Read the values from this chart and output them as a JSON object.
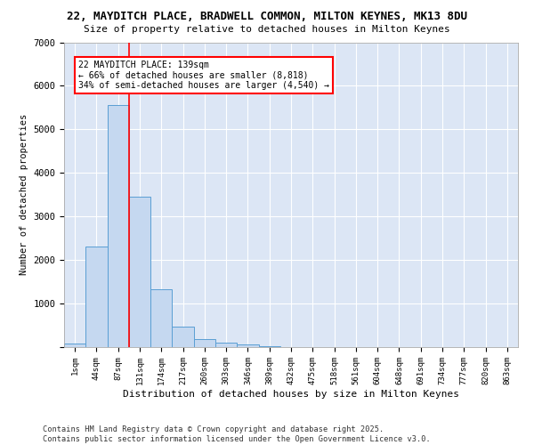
{
  "title_line1": "22, MAYDITCH PLACE, BRADWELL COMMON, MILTON KEYNES, MK13 8DU",
  "title_line2": "Size of property relative to detached houses in Milton Keynes",
  "xlabel": "Distribution of detached houses by size in Milton Keynes",
  "ylabel": "Number of detached properties",
  "categories": [
    "1sqm",
    "44sqm",
    "87sqm",
    "131sqm",
    "174sqm",
    "217sqm",
    "260sqm",
    "303sqm",
    "346sqm",
    "389sqm",
    "432sqm",
    "475sqm",
    "518sqm",
    "561sqm",
    "604sqm",
    "648sqm",
    "691sqm",
    "734sqm",
    "777sqm",
    "820sqm",
    "863sqm"
  ],
  "values": [
    80,
    2300,
    5550,
    3450,
    1320,
    470,
    175,
    95,
    55,
    20,
    5,
    3,
    2,
    1,
    1,
    0,
    0,
    0,
    0,
    0,
    0
  ],
  "bar_color": "#c5d8f0",
  "bar_edge_color": "#5a9fd4",
  "background_color": "#dce6f5",
  "grid_color": "#ffffff",
  "vline_x_index": 2.52,
  "vline_color": "red",
  "annotation_text": "22 MAYDITCH PLACE: 139sqm\n← 66% of detached houses are smaller (8,818)\n34% of semi-detached houses are larger (4,540) →",
  "annotation_box_color": "white",
  "annotation_box_edge": "red",
  "ylim": [
    0,
    7000
  ],
  "yticks": [
    0,
    1000,
    2000,
    3000,
    4000,
    5000,
    6000,
    7000
  ],
  "footer_line1": "Contains HM Land Registry data © Crown copyright and database right 2025.",
  "footer_line2": "Contains public sector information licensed under the Open Government Licence v3.0.",
  "fig_bg": "#ffffff"
}
